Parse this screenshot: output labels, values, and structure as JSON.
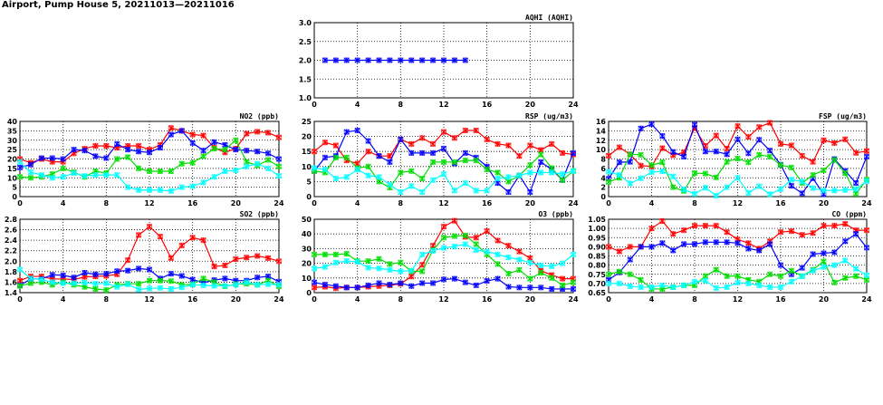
{
  "page_title": "Airport, Pump House 5, 20211013—20211016",
  "colors": {
    "red": "#ff0000",
    "blue": "#0000ff",
    "green": "#00dd00",
    "cyan": "#00ffff"
  },
  "chart_data": [
    {
      "type": "line",
      "title": "AQHI (AQHI)",
      "ylim": [
        1,
        3
      ],
      "yticks": [
        "1.0",
        "1.5",
        "2.0",
        "2.5",
        "3.0"
      ],
      "xlim": [
        0,
        24
      ],
      "xticks": [
        "0",
        "4",
        "8",
        "12",
        "16",
        "20",
        "24"
      ],
      "series": [
        {
          "name": "blue",
          "color": "#0000ff",
          "x": [
            1,
            2,
            3,
            4,
            5,
            6,
            7,
            8,
            9,
            10,
            11,
            12,
            13,
            14
          ],
          "values": [
            2,
            2,
            2,
            2,
            2,
            2,
            2,
            2,
            2,
            2,
            2,
            2,
            2,
            2
          ]
        }
      ]
    },
    {
      "type": "line",
      "title": "NO2 (ppb)",
      "ylim": [
        0,
        40
      ],
      "yticks": [
        "0",
        "5",
        "10",
        "15",
        "20",
        "25",
        "30",
        "35",
        "40"
      ],
      "xlim": [
        0,
        24
      ],
      "xticks": [
        "0",
        "4",
        "8",
        "12",
        "16",
        "20",
        "24"
      ],
      "series": [
        {
          "name": "red",
          "color": "#ff0000",
          "values": [
            20,
            18,
            20,
            18.5,
            18.5,
            23,
            25.5,
            27,
            27,
            26,
            27,
            27,
            25,
            27.5,
            36.5,
            35,
            33,
            32.5,
            26,
            23.5,
            25.5,
            33.5,
            34.5,
            34,
            31.5
          ]
        },
        {
          "name": "blue",
          "color": "#0000ff",
          "values": [
            15.5,
            17,
            20.5,
            20.5,
            20,
            25,
            24.5,
            21.5,
            20.5,
            28,
            25,
            24,
            23.5,
            26,
            33,
            35,
            28.5,
            24.5,
            29,
            27.5,
            25,
            24.5,
            24,
            23,
            20
          ]
        },
        {
          "name": "green",
          "color": "#00dd00",
          "values": [
            10.5,
            10,
            10.5,
            12,
            15,
            13,
            10.5,
            13.5,
            12.5,
            20,
            21,
            15,
            13.5,
            13.5,
            13.5,
            17.5,
            18,
            21.5,
            25.5,
            25,
            30,
            18.5,
            16.5,
            19.5,
            16
          ]
        },
        {
          "name": "cyan",
          "color": "#00ffff",
          "values": [
            18.5,
            13,
            11.5,
            10,
            10.5,
            12.5,
            11,
            11.5,
            11.5,
            11.5,
            5,
            3.5,
            3.5,
            3.5,
            3,
            5,
            5.5,
            7.5,
            10.5,
            13.5,
            14,
            16,
            17.5,
            15,
            11
          ]
        }
      ]
    },
    {
      "type": "line",
      "title": "RSP (ug/m3)",
      "ylim": [
        0,
        25
      ],
      "yticks": [
        "0",
        "5",
        "10",
        "15",
        "20",
        "25"
      ],
      "xlim": [
        0,
        24
      ],
      "xticks": [
        "0",
        "4",
        "8",
        "12",
        "16",
        "20",
        "24"
      ],
      "series": [
        {
          "name": "red",
          "color": "#ff0000",
          "values": [
            15,
            18,
            17,
            12,
            11,
            15,
            13.5,
            13.5,
            19,
            17.5,
            19.5,
            17.5,
            21.5,
            19.5,
            22,
            22,
            19,
            17.5,
            17,
            13.5,
            17,
            15.5,
            17.5,
            14.5,
            14
          ]
        },
        {
          "name": "blue",
          "color": "#0000ff",
          "values": [
            8.5,
            13,
            13.5,
            21.5,
            22,
            18.5,
            13.5,
            11.5,
            19,
            14.5,
            14.5,
            14.5,
            16,
            11,
            14.5,
            13,
            10,
            4.5,
            1.5,
            7,
            1.5,
            11.5,
            9,
            5.5,
            14.5
          ]
        },
        {
          "name": "green",
          "color": "#00dd00",
          "values": [
            8.5,
            8,
            13,
            13,
            9.5,
            10,
            5,
            3,
            8,
            8.5,
            6,
            11.5,
            11.5,
            11.5,
            12,
            12,
            9,
            8,
            5,
            7,
            10.5,
            14,
            9.5,
            5.5,
            8.5
          ]
        },
        {
          "name": "cyan",
          "color": "#00ffff",
          "values": [
            9.5,
            9,
            6,
            6.5,
            9,
            7,
            6.5,
            4,
            1.5,
            3.5,
            1.5,
            5.5,
            7.5,
            2,
            4.5,
            2,
            2,
            6,
            6.5,
            7,
            8,
            8,
            8,
            7.5,
            8.5
          ]
        }
      ]
    },
    {
      "type": "line",
      "title": "FSP (ug/m3)",
      "ylim": [
        0,
        16
      ],
      "yticks": [
        "0",
        "2",
        "4",
        "6",
        "8",
        "10",
        "12",
        "14",
        "16"
      ],
      "xlim": [
        0,
        24
      ],
      "xticks": [
        "0",
        "4",
        "8",
        "12",
        "16",
        "20",
        "24"
      ],
      "series": [
        {
          "name": "red",
          "color": "#ff0000",
          "values": [
            8.7,
            10.5,
            9,
            6.6,
            6.4,
            10.3,
            8.8,
            9.4,
            14.6,
            10.8,
            13,
            10.2,
            15,
            12.7,
            14.8,
            15.7,
            11.2,
            10.9,
            8.7,
            7.4,
            12,
            11.4,
            12.2,
            9.3,
            9.7
          ]
        },
        {
          "name": "blue",
          "color": "#0000ff",
          "values": [
            3.8,
            7.3,
            7.4,
            14.5,
            15.4,
            12.9,
            9.5,
            8.5,
            15.3,
            9.6,
            9.6,
            9,
            12.2,
            9.2,
            12.1,
            9.8,
            6.8,
            2.3,
            0.7,
            3.9,
            0.5,
            8,
            5.5,
            2.9,
            8.5
          ]
        },
        {
          "name": "green",
          "color": "#00dd00",
          "values": [
            3.1,
            4,
            9,
            8.9,
            6.7,
            7.3,
            2,
            1.2,
            5,
            4.9,
            4.1,
            7.4,
            8.1,
            7.3,
            8.9,
            8.5,
            6.7,
            6.2,
            2.9,
            4.6,
            5.6,
            7.8,
            5,
            0.6,
            3.6
          ]
        },
        {
          "name": "cyan",
          "color": "#00ffff",
          "values": [
            5.3,
            4.6,
            2.8,
            3.9,
            5.2,
            5.4,
            4.3,
            1.5,
            0.6,
            1.9,
            0.2,
            2,
            4,
            0.8,
            2.2,
            0.5,
            1.6,
            3.6,
            3.2,
            1.8,
            1.3,
            1.3,
            1.4,
            1.6,
            3.3
          ]
        }
      ]
    },
    {
      "type": "line",
      "title": "SO2 (ppb)",
      "ylim": [
        1.4,
        2.8
      ],
      "yticks": [
        "1.4",
        "1.6",
        "1.8",
        "2.0",
        "2.2",
        "2.4",
        "2.6",
        "2.8"
      ],
      "xlim": [
        0,
        24
      ],
      "xticks": [
        "0",
        "4",
        "8",
        "12",
        "16",
        "20",
        "24"
      ],
      "series": [
        {
          "name": "red",
          "color": "#ff0000",
          "values": [
            1.63,
            1.71,
            1.71,
            1.66,
            1.66,
            1.65,
            1.7,
            1.71,
            1.72,
            1.75,
            2.02,
            2.5,
            2.66,
            2.47,
            2.06,
            2.3,
            2.45,
            2.4,
            1.9,
            1.92,
            2.04,
            2.07,
            2.1,
            2.06,
            2.0
          ]
        },
        {
          "name": "blue",
          "color": "#0000ff",
          "values": [
            1.54,
            1.66,
            1.66,
            1.74,
            1.73,
            1.69,
            1.78,
            1.75,
            1.76,
            1.81,
            1.82,
            1.86,
            1.84,
            1.67,
            1.76,
            1.72,
            1.65,
            1.59,
            1.64,
            1.67,
            1.63,
            1.63,
            1.69,
            1.71,
            1.61
          ]
        },
        {
          "name": "green",
          "color": "#00dd00",
          "values": [
            1.53,
            1.58,
            1.6,
            1.55,
            1.6,
            1.55,
            1.51,
            1.47,
            1.45,
            1.55,
            1.57,
            1.57,
            1.63,
            1.63,
            1.62,
            1.55,
            1.56,
            1.67,
            1.6,
            1.52,
            1.56,
            1.57,
            1.55,
            1.63,
            1.52
          ]
        },
        {
          "name": "cyan",
          "color": "#00ffff",
          "values": [
            1.84,
            1.67,
            1.65,
            1.6,
            1.58,
            1.58,
            1.59,
            1.57,
            1.58,
            1.51,
            1.56,
            1.46,
            1.48,
            1.49,
            1.47,
            1.5,
            1.55,
            1.54,
            1.53,
            1.53,
            1.55,
            1.6,
            1.55,
            1.56,
            1.55
          ]
        }
      ]
    },
    {
      "type": "line",
      "title": "O3 (ppb)",
      "ylim": [
        0,
        50
      ],
      "yticks": [
        "0",
        "10",
        "20",
        "30",
        "40",
        "50"
      ],
      "xlim": [
        0,
        24
      ],
      "xticks": [
        "0",
        "4",
        "8",
        "12",
        "16",
        "20",
        "24"
      ],
      "series": [
        {
          "name": "red",
          "color": "#ff0000",
          "values": [
            3.5,
            4,
            3,
            3.5,
            3.5,
            4,
            4.5,
            5,
            6,
            11,
            19,
            32,
            45,
            49,
            38,
            37.5,
            42,
            35.5,
            32,
            28,
            23.5,
            15,
            12,
            9.5,
            9.5
          ]
        },
        {
          "name": "blue",
          "color": "#0000ff",
          "values": [
            7,
            5.5,
            4.5,
            3.5,
            3.5,
            5,
            6.5,
            5.5,
            6.5,
            4.5,
            6.5,
            6.5,
            9,
            9.5,
            7,
            5,
            8,
            9.5,
            4,
            3.5,
            3.5,
            3.5,
            2.5,
            2.5,
            2.5
          ]
        },
        {
          "name": "green",
          "color": "#00dd00",
          "values": [
            26,
            26,
            26,
            26.5,
            21.5,
            21.5,
            23,
            19.5,
            20.5,
            14.5,
            14.5,
            29,
            37.5,
            38.5,
            39,
            33,
            26,
            19.5,
            13,
            15.5,
            9.5,
            13.5,
            10,
            5,
            7
          ]
        },
        {
          "name": "cyan",
          "color": "#00ffff",
          "values": [
            16.5,
            17.5,
            20.5,
            21.5,
            21,
            17,
            16.5,
            15.5,
            14.5,
            15,
            26,
            28.5,
            30.5,
            31.5,
            33,
            29,
            28,
            26,
            24,
            22.5,
            20.5,
            18.5,
            18,
            20,
            26
          ]
        }
      ]
    },
    {
      "type": "line",
      "title": "CO (ppm)",
      "ylim": [
        0.65,
        1.05
      ],
      "yticks": [
        "0.65",
        "0.70",
        "0.75",
        "0.80",
        "0.85",
        "0.90",
        "0.95",
        "1.00",
        "1.05"
      ],
      "xlim": [
        0,
        24
      ],
      "xticks": [
        "0",
        "4",
        "8",
        "12",
        "16",
        "20",
        "24"
      ],
      "series": [
        {
          "name": "red",
          "color": "#ff0000",
          "values": [
            0.9,
            0.875,
            0.9,
            0.9,
            1.0,
            1.04,
            0.97,
            0.99,
            1.015,
            1.015,
            1.015,
            0.98,
            0.94,
            0.92,
            0.89,
            0.93,
            0.98,
            0.985,
            0.965,
            0.975,
            1.015,
            1.015,
            1.025,
            0.99,
            0.99
          ]
        },
        {
          "name": "blue",
          "color": "#0000ff",
          "values": [
            0.72,
            0.76,
            0.83,
            0.9,
            0.9,
            0.92,
            0.88,
            0.915,
            0.915,
            0.925,
            0.925,
            0.925,
            0.92,
            0.89,
            0.88,
            0.915,
            0.8,
            0.75,
            0.785,
            0.86,
            0.865,
            0.87,
            0.93,
            0.97,
            0.895
          ]
        },
        {
          "name": "green",
          "color": "#00dd00",
          "values": [
            0.75,
            0.765,
            0.75,
            0.72,
            0.67,
            0.67,
            0.68,
            0.69,
            0.69,
            0.74,
            0.775,
            0.74,
            0.74,
            0.72,
            0.71,
            0.75,
            0.74,
            0.77,
            0.74,
            0.775,
            0.82,
            0.705,
            0.73,
            0.74,
            0.72
          ]
        },
        {
          "name": "cyan",
          "color": "#00ffff",
          "values": [
            0.7,
            0.7,
            0.685,
            0.68,
            0.68,
            0.69,
            0.68,
            0.69,
            0.71,
            0.715,
            0.675,
            0.68,
            0.705,
            0.7,
            0.69,
            0.68,
            0.68,
            0.71,
            0.74,
            0.77,
            0.79,
            0.8,
            0.825,
            0.78,
            0.745
          ]
        }
      ]
    }
  ]
}
